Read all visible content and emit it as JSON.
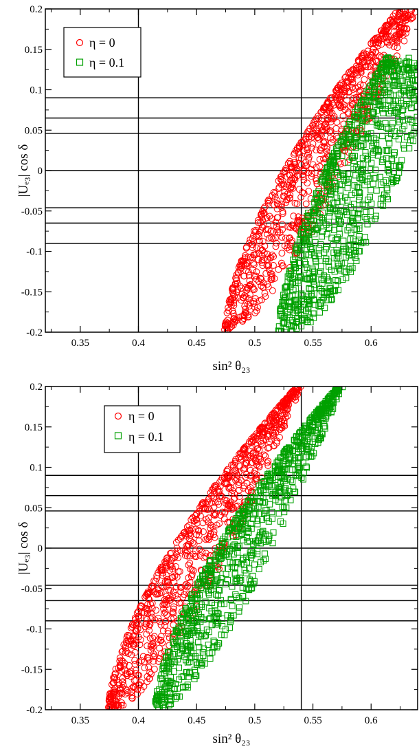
{
  "chart_data": [
    {
      "type": "scatter",
      "xlabel": "sin² θ₂₃",
      "ylabel": "|Uₑ₃| cos δ",
      "xlim": [
        0.32,
        0.64
      ],
      "ylim": [
        -0.2,
        0.2
      ],
      "x_ticks": [
        "0.35",
        "0.4",
        "0.45",
        "0.5",
        "0.55",
        "0.6"
      ],
      "y_ticks": [
        "-0.2",
        "-0.15",
        "-0.1",
        "-0.05",
        "0",
        "0.05",
        "0.1",
        "0.15",
        "0.2"
      ],
      "reference_lines": {
        "horizontal": [
          0.09,
          0.065,
          0.046,
          0,
          -0.046,
          -0.065,
          -0.09
        ],
        "vertical": [
          0.4,
          0.54
        ]
      },
      "legend_position": "top-left",
      "series": [
        {
          "name": "η = 0",
          "marker": "circle",
          "color": "#ff0000",
          "band": {
            "y_from": -0.2,
            "y_to": 0.2,
            "x_left_start": 0.474,
            "x_left_end": 0.624,
            "x_right_start": 0.478,
            "x_right_end": 0.64,
            "y_right_cut": 0.2
          }
        },
        {
          "name": "η = 0.1",
          "marker": "square",
          "color": "#00a000",
          "band": {
            "y_from": -0.2,
            "y_to": 0.14,
            "x_left_start": 0.52,
            "x_left_end": 0.64,
            "x_right_start": 0.54,
            "x_right_end": 0.64,
            "y_right_cut": 0.05
          }
        }
      ]
    },
    {
      "type": "scatter",
      "xlabel": "sin² θ₂₃",
      "ylabel": "|Uₑ₃| cos δ",
      "xlim": [
        0.32,
        0.64
      ],
      "ylim": [
        -0.2,
        0.2
      ],
      "x_ticks": [
        "0.35",
        "0.4",
        "0.45",
        "0.5",
        "0.55",
        "0.6"
      ],
      "y_ticks": [
        "-0.2",
        "-0.15",
        "-0.1",
        "-0.05",
        "0",
        "0.05",
        "0.1",
        "0.15",
        "0.2"
      ],
      "reference_lines": {
        "horizontal": [
          0.09,
          0.065,
          0.046,
          0,
          -0.046,
          -0.065,
          -0.09
        ],
        "vertical": [
          0.4,
          0.54
        ]
      },
      "legend_position": "top-center",
      "series": [
        {
          "name": "η = 0",
          "marker": "circle",
          "color": "#ff0000",
          "band": {
            "y_from": -0.2,
            "y_to": 0.2,
            "x_left_start": 0.374,
            "x_left_end": 0.536,
            "x_right_start": 0.38,
            "x_right_end": 0.54,
            "y_right_cut": 0.2
          }
        },
        {
          "name": "η = 0.1",
          "marker": "square",
          "color": "#00a000",
          "band": {
            "y_from": -0.2,
            "y_to": 0.2,
            "x_left_start": 0.414,
            "x_left_end": 0.572,
            "x_right_start": 0.42,
            "x_right_end": 0.575,
            "y_right_cut": 0.2
          }
        }
      ]
    }
  ]
}
